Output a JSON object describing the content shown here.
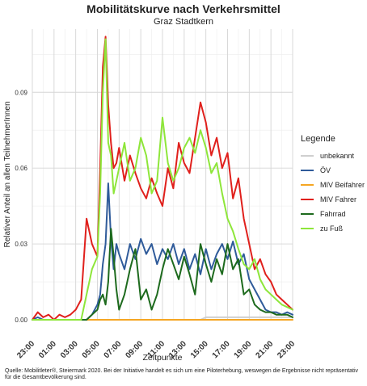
{
  "chart_data": {
    "type": "line",
    "title": "Mobilitätskurve nach Verkehrsmittel",
    "subtitle": "Graz Stadtkern",
    "xlabel": "Zeitpunkte",
    "ylabel": "Relativer Anteil an allen TeilnehmerInnen",
    "x_ticks": [
      "23:00",
      "01:00",
      "03:00",
      "05:00",
      "07:00",
      "09:00",
      "11:00",
      "13:00",
      "15:00",
      "17:00",
      "19:00",
      "21:00",
      "23:00"
    ],
    "y_ticks": [
      "0.00",
      "0.03",
      "0.06",
      "0.09"
    ],
    "ylim": [
      0,
      0.115
    ],
    "grid": true,
    "legend_title": "Legende",
    "legend_position": "right",
    "x_hours": [
      23.0,
      23.5,
      24.0,
      24.5,
      25.0,
      25.5,
      26.0,
      26.5,
      27.0,
      27.5,
      28.0,
      28.5,
      29.0,
      29.25,
      29.5,
      29.75,
      30.0,
      30.25,
      30.5,
      30.75,
      31.0,
      31.5,
      32.0,
      32.5,
      33.0,
      33.5,
      34.0,
      34.5,
      35.0,
      35.5,
      36.0,
      36.5,
      37.0,
      37.5,
      38.0,
      38.5,
      39.0,
      39.5,
      40.0,
      40.5,
      41.0,
      41.5,
      42.0,
      42.5,
      43.0,
      43.5,
      44.0,
      44.5,
      45.0,
      45.5,
      46.0,
      46.5,
      47.0
    ],
    "series": [
      {
        "name": "unbekannt",
        "color": "#cfcfcf",
        "values": [
          0,
          0,
          0,
          0,
          0,
          0,
          0,
          0,
          0,
          0,
          0,
          0,
          0,
          0,
          0,
          0,
          0,
          0,
          0,
          0,
          0,
          0,
          0,
          0,
          0,
          0,
          0,
          0,
          0,
          0,
          0,
          0,
          0,
          0,
          0,
          0,
          0.001,
          0.001,
          0.001,
          0.001,
          0.001,
          0.001,
          0.001,
          0.001,
          0.001,
          0.001,
          0.001,
          0.001,
          0.001,
          0.001,
          0.001,
          0.001,
          0.001
        ]
      },
      {
        "name": "ÖV",
        "color": "#2f5b9a",
        "values": [
          0,
          0.001,
          0,
          0,
          0,
          0,
          0,
          0,
          0,
          0,
          0,
          0.002,
          0.006,
          0.01,
          0.022,
          0.03,
          0.054,
          0.032,
          0.02,
          0.03,
          0.026,
          0.02,
          0.03,
          0.024,
          0.032,
          0.026,
          0.03,
          0.022,
          0.028,
          0.024,
          0.03,
          0.022,
          0.028,
          0.02,
          0.026,
          0.018,
          0.028,
          0.02,
          0.026,
          0.03,
          0.024,
          0.031,
          0.022,
          0.026,
          0.016,
          0.012,
          0.008,
          0.004,
          0.003,
          0.003,
          0.002,
          0.003,
          0.002
        ]
      },
      {
        "name": "MIV Beifahrer",
        "color": "#f5a623",
        "values": [
          0,
          0,
          0,
          0,
          0,
          0,
          0,
          0,
          0,
          0,
          0,
          0,
          0,
          0,
          0,
          0,
          0,
          0,
          0,
          0,
          0,
          0,
          0,
          0,
          0,
          0,
          0,
          0,
          0,
          0,
          0,
          0,
          0,
          0,
          0,
          0,
          0,
          0,
          0,
          0,
          0,
          0,
          0,
          0,
          0,
          0,
          0,
          0,
          0,
          0,
          0,
          0,
          0
        ]
      },
      {
        "name": "MIV Fahrer",
        "color": "#e0201c",
        "values": [
          0,
          0.003,
          0.001,
          0.002,
          0,
          0.002,
          0.001,
          0.002,
          0.004,
          0.008,
          0.04,
          0.03,
          0.025,
          0.06,
          0.1,
          0.112,
          0.085,
          0.07,
          0.06,
          0.062,
          0.068,
          0.055,
          0.065,
          0.058,
          0.052,
          0.048,
          0.056,
          0.05,
          0.045,
          0.06,
          0.052,
          0.07,
          0.062,
          0.058,
          0.072,
          0.086,
          0.078,
          0.065,
          0.072,
          0.06,
          0.066,
          0.048,
          0.056,
          0.04,
          0.03,
          0.02,
          0.024,
          0.018,
          0.015,
          0.01,
          0.008,
          0.006,
          0.004
        ]
      },
      {
        "name": "Fahrrad",
        "color": "#1d6a1d",
        "values": [
          0,
          0,
          0,
          0,
          0,
          0,
          0,
          0,
          0,
          0,
          0,
          0.002,
          0.004,
          0.008,
          0.01,
          0.006,
          0.015,
          0.036,
          0.025,
          0.012,
          0.004,
          0.01,
          0.02,
          0.028,
          0.008,
          0.012,
          0.004,
          0.01,
          0.02,
          0.028,
          0.022,
          0.016,
          0.025,
          0.018,
          0.01,
          0.03,
          0.022,
          0.015,
          0.024,
          0.018,
          0.03,
          0.02,
          0.024,
          0.01,
          0.012,
          0.006,
          0.004,
          0.003,
          0.003,
          0.002,
          0.002,
          0.002,
          0.001
        ]
      },
      {
        "name": "zu Fuß",
        "color": "#8ee63a",
        "values": [
          0,
          0,
          0,
          0,
          0,
          0,
          0,
          0,
          0,
          0,
          0.01,
          0.02,
          0.025,
          0.05,
          0.09,
          0.111,
          0.07,
          0.065,
          0.05,
          0.055,
          0.06,
          0.07,
          0.055,
          0.06,
          0.072,
          0.065,
          0.05,
          0.055,
          0.08,
          0.062,
          0.055,
          0.06,
          0.068,
          0.072,
          0.066,
          0.075,
          0.068,
          0.058,
          0.062,
          0.05,
          0.04,
          0.035,
          0.028,
          0.022,
          0.02,
          0.024,
          0.016,
          0.012,
          0.01,
          0.008,
          0.006,
          0.005,
          0.004
        ]
      }
    ]
  },
  "source_text": "Quelle: Mobilitleter®, Steiermark 2020. Bei der Initiative handelt es sich um eine Piloterhebung, weswegen die Ergebnisse nicht repräsentativ für die Gesamtbevölkerung sind."
}
